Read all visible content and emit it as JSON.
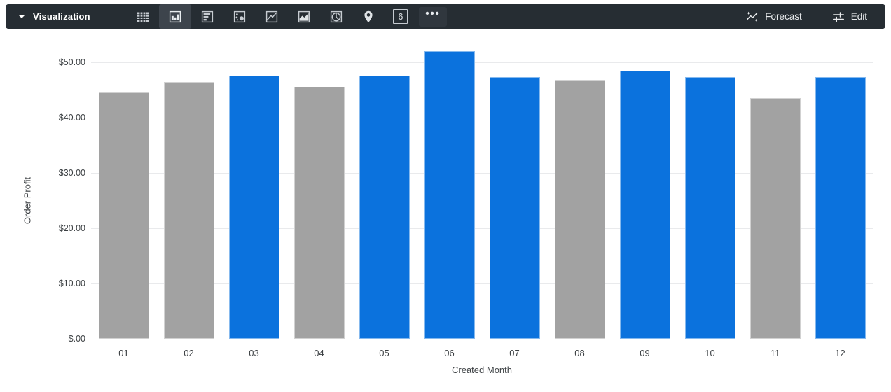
{
  "toolbar": {
    "title": "Visualization",
    "icon_names": [
      "table-icon",
      "column-chart-icon",
      "bar-chart-icon",
      "scatter-chart-icon",
      "line-chart-icon",
      "area-chart-icon",
      "pie-chart-icon",
      "map-pin-icon",
      "single-value-icon",
      "more-options-icon"
    ],
    "selected_icon": "column-chart-icon",
    "single_value_glyph": "6",
    "more_glyph": "•••",
    "forecast_label": "Forecast",
    "edit_label": "Edit"
  },
  "colors": {
    "toolbar_bg": "#262d33",
    "toolbar_selected_bg": "#3d444c",
    "toolbar_icon": "#c6cbd1",
    "gridline": "#e9eaec",
    "baseline": "#dde3ea",
    "axis_text": "#3c4043"
  },
  "chart_data": {
    "type": "bar",
    "title": "",
    "xlabel": "Created Month",
    "ylabel": "Order Profit",
    "categories": [
      "01",
      "02",
      "03",
      "04",
      "05",
      "06",
      "07",
      "08",
      "09",
      "10",
      "11",
      "12"
    ],
    "values": [
      44.5,
      46.4,
      47.6,
      45.6,
      47.6,
      52.0,
      47.3,
      46.7,
      48.5,
      47.3,
      43.6,
      47.3
    ],
    "bar_colors": [
      "gray",
      "gray",
      "blue",
      "gray",
      "blue",
      "blue",
      "blue",
      "gray",
      "blue",
      "blue",
      "gray",
      "blue"
    ],
    "series_colors": {
      "blue": "#0b72dd",
      "gray": "#a2a2a2"
    },
    "ylim": [
      0,
      50
    ],
    "ytick_step": 10,
    "ytick_labels": [
      "$.00",
      "$10.00",
      "$20.00",
      "$30.00",
      "$40.00",
      "$50.00"
    ],
    "grid": true,
    "legend": "none"
  }
}
